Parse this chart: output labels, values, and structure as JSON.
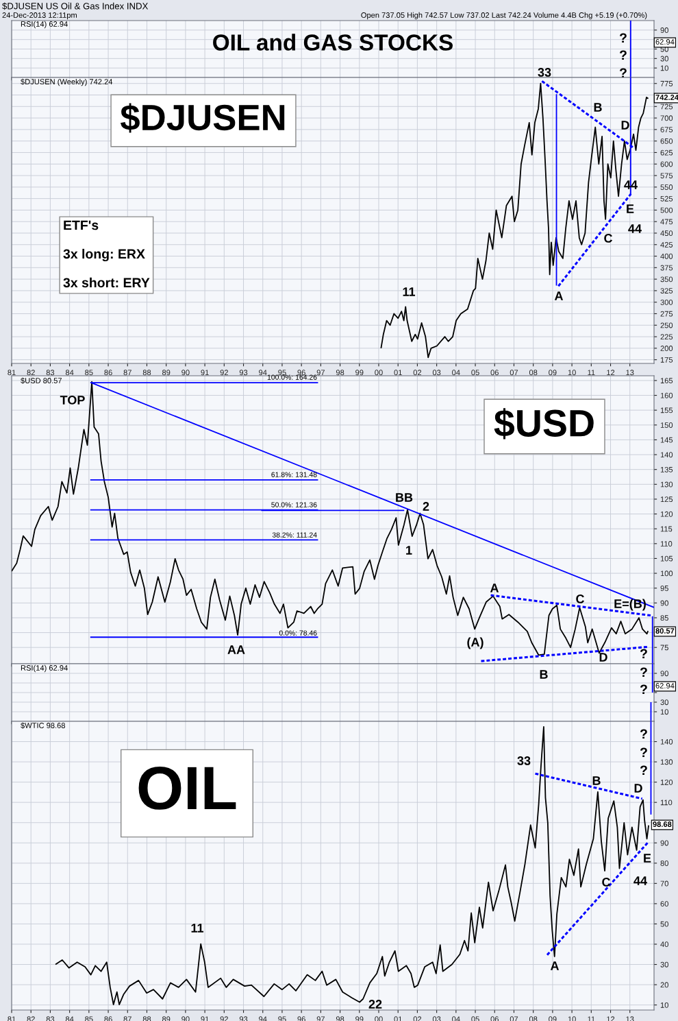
{
  "chart_data": [
    {
      "type": "line",
      "title": "OIL and GAS STOCKS",
      "xlim": [
        1981,
        2014.25
      ],
      "ylim": [
        -10,
        110
      ],
      "yticks": [
        10,
        30,
        50,
        {
          "value": 70,
          "label": null
        },
        90
      ],
      "grid": true,
      "tick_labels": "y",
      "xticks": [
        1981,
        1982,
        1983,
        1984,
        1985,
        1986,
        1987,
        1988,
        1989,
        1990,
        1991,
        1992,
        1993,
        1994,
        1995,
        1996,
        1997,
        1998,
        1999,
        2000,
        2001,
        2002,
        2003,
        2004,
        2005,
        2006,
        2007,
        2008,
        2009,
        2010,
        2011,
        2012,
        2013
      ],
      "series": [
        {
          "color": "#0000ff",
          "line_style": "solid",
          "x": [
            2013.04,
            2013.04
          ],
          "values": [
            -10,
            110
          ]
        }
      ],
      "annotations": [
        "$DJUSEN US Oil & Gas Index INDX",
        "24-Dec-2013 12:11pm",
        "Open 737.05 High 742.57 Low 737.02 Last 742.24 Volume 4.4B Chg +5.19 (+0.70%)",
        "RSI(14) 62.94",
        "62.94",
        "33",
        "?",
        "?",
        "?"
      ]
    },
    {
      "type": "line",
      "xlim": [
        1981,
        2014.25
      ],
      "ylim": [
        167,
        788
      ],
      "yticks": [
        175,
        200,
        225,
        250,
        275,
        300,
        325,
        350,
        375,
        400,
        425,
        450,
        475,
        500,
        525,
        550,
        575,
        600,
        625,
        650,
        675,
        700,
        725,
        {
          "value": 750,
          "label": null
        },
        775
      ],
      "grid": true,
      "xticks": [
        {
          "value": 1981,
          "label": "81"
        },
        {
          "value": 1982,
          "label": "82"
        },
        {
          "value": 1983,
          "label": "83"
        },
        {
          "value": 1984,
          "label": "84"
        },
        {
          "value": 1985,
          "label": "85"
        },
        {
          "value": 1986,
          "label": "86"
        },
        {
          "value": 1987,
          "label": "87"
        },
        {
          "value": 1988,
          "label": "88"
        },
        {
          "value": 1989,
          "label": "89"
        },
        {
          "value": 1990,
          "label": "90"
        },
        {
          "value": 1991,
          "label": "91"
        },
        {
          "value": 1992,
          "label": "92"
        },
        {
          "value": 1993,
          "label": "93"
        },
        {
          "value": 1994,
          "label": "94"
        },
        {
          "value": 1995,
          "label": "95"
        },
        {
          "value": 1996,
          "label": "96"
        },
        {
          "value": 1997,
          "label": "97"
        },
        {
          "value": 1998,
          "label": "98"
        },
        {
          "value": 1999,
          "label": "99"
        },
        {
          "value": 2000,
          "label": "00"
        },
        {
          "value": 2001,
          "label": "01"
        },
        {
          "value": 2002,
          "label": "02"
        },
        {
          "value": 2003,
          "label": "03"
        },
        {
          "value": 2004,
          "label": "04"
        },
        {
          "value": 2005,
          "label": "05"
        },
        {
          "value": 2006,
          "label": "06"
        },
        {
          "value": 2007,
          "label": "07"
        },
        {
          "value": 2008,
          "label": "08"
        },
        {
          "value": 2009,
          "label": "09"
        },
        {
          "value": 2010,
          "label": "10"
        },
        {
          "value": 2011,
          "label": "11"
        },
        {
          "value": 2012,
          "label": "12"
        },
        {
          "value": 2013,
          "label": "13"
        }
      ],
      "series": [
        {
          "color": "#000000",
          "line_style": "solid",
          "x": [
            2000.12,
            2000.24,
            2000.41,
            2000.59,
            2000.79,
            2001.0,
            2001.18,
            2001.3,
            2001.39,
            2001.47,
            2001.71,
            2001.89,
            2002.01,
            2002.22,
            2002.42,
            2002.56,
            2002.71,
            2003.01,
            2003.42,
            2003.6,
            2003.83,
            2004.01,
            2004.25,
            2004.6,
            2004.9,
            2005.01,
            2005.13,
            2005.37,
            2005.55,
            2005.72,
            2005.9,
            2006.08,
            2006.37,
            2006.61,
            2006.9,
            2007.02,
            2007.2,
            2007.37,
            2007.55,
            2007.79,
            2007.93,
            2008.08,
            2008.26,
            2008.38,
            2008.5,
            2008.61,
            2008.71,
            2008.79,
            2008.85,
            2008.93,
            2009.03,
            2009.18,
            2009.32,
            2009.53,
            2009.68,
            2009.85,
            2010.03,
            2010.21,
            2010.38,
            2010.5,
            2010.68,
            2010.86,
            2011.03,
            2011.21,
            2011.39,
            2011.56,
            2011.66,
            2011.74,
            2011.86,
            2012.01,
            2012.15,
            2012.27,
            2012.41,
            2012.57,
            2012.72,
            2012.86,
            2013.01,
            2013.19,
            2013.31,
            2013.45,
            2013.57,
            2013.69,
            2013.86,
            2013.95
          ],
          "values": [
            200,
            230,
            260,
            250,
            275,
            265,
            280,
            260,
            290,
            260,
            215,
            230,
            220,
            255,
            225,
            180,
            200,
            205,
            225,
            215,
            225,
            260,
            275,
            285,
            325,
            330,
            395,
            350,
            390,
            450,
            415,
            500,
            440,
            510,
            530,
            475,
            500,
            600,
            640,
            690,
            620,
            690,
            720,
            775,
            700,
            610,
            520,
            460,
            360,
            430,
            380,
            440,
            410,
            395,
            460,
            520,
            480,
            520,
            440,
            425,
            450,
            560,
            620,
            680,
            600,
            660,
            520,
            480,
            600,
            570,
            650,
            590,
            530,
            600,
            650,
            610,
            630,
            665,
            630,
            680,
            700,
            710,
            745,
            742.24
          ]
        },
        {
          "color": "#0000ff",
          "line_style": "dashed",
          "x": [
            2008.45,
            2013.2
          ],
          "values": [
            780,
            635
          ]
        },
        {
          "color": "#0000ff",
          "line_style": "dashed",
          "x": [
            2009.3,
            2013.05
          ],
          "values": [
            335,
            535
          ]
        },
        {
          "color": "#0000ff",
          "line_style": "solid",
          "x": [
            2009.2,
            2009.2
          ],
          "values": [
            336,
            752
          ]
        },
        {
          "color": "#0000ff",
          "line_style": "solid",
          "x": [
            2013.04,
            2013.04
          ],
          "values": [
            532,
            788
          ]
        }
      ],
      "annotations": [
        "$DJUSEN (Weekly) 742.24",
        "$DJUSEN",
        "ETF's\n\n3x long: ERX\n\n3x short: ERY",
        "742.24",
        "11",
        "A",
        "B",
        "C",
        "D",
        "E",
        "44",
        "44"
      ]
    },
    {
      "type": "line",
      "xlim": [
        1981,
        2014.25
      ],
      "ylim": [
        69.5,
        166.6
      ],
      "yticks": [
        75,
        {
          "value": 80,
          "label": null
        },
        85,
        90,
        95,
        100,
        105,
        110,
        115,
        120,
        125,
        130,
        135,
        140,
        145,
        150,
        155,
        160,
        165
      ],
      "grid": true,
      "tick_labels": "y",
      "xticks": [
        1981,
        1982,
        1983,
        1984,
        1985,
        1986,
        1987,
        1988,
        1989,
        1990,
        1991,
        1992,
        1993,
        1994,
        1995,
        1996,
        1997,
        1998,
        1999,
        2000,
        2001,
        2002,
        2003,
        2004,
        2005,
        2006,
        2007,
        2008,
        2009,
        2010,
        2011,
        2012,
        2013
      ],
      "series": [
        {
          "color": "#000000",
          "line_style": "solid",
          "x": [
            1981.0,
            1981.26,
            1981.44,
            1981.6,
            1982.03,
            1982.2,
            1982.5,
            1982.9,
            1983.1,
            1983.4,
            1983.6,
            1983.86,
            1984.03,
            1984.2,
            1984.45,
            1984.74,
            1984.92,
            1985.15,
            1985.27,
            1985.5,
            1985.63,
            1985.8,
            1986.0,
            1986.2,
            1986.33,
            1986.5,
            1986.8,
            1986.98,
            1987.16,
            1987.4,
            1987.63,
            1987.87,
            1988.04,
            1988.28,
            1988.58,
            1988.93,
            1989.22,
            1989.46,
            1989.64,
            1989.87,
            1990.05,
            1990.29,
            1990.58,
            1990.82,
            1991.1,
            1991.29,
            1991.52,
            1991.76,
            1992.06,
            1992.29,
            1992.53,
            1992.7,
            1992.88,
            1993.12,
            1993.35,
            1993.6,
            1993.83,
            1994.07,
            1994.36,
            1994.6,
            1994.89,
            1995.07,
            1995.3,
            1995.6,
            1995.77,
            1996.13,
            1996.48,
            1996.66,
            1996.83,
            1997.07,
            1997.25,
            1997.6,
            1997.9,
            1998.13,
            1998.66,
            1998.78,
            1999.01,
            1999.25,
            1999.54,
            1999.78,
            1999.96,
            2000.19,
            2000.43,
            2000.66,
            2000.9,
            2001.02,
            2001.31,
            2001.49,
            2001.73,
            2001.96,
            2002.14,
            2002.32,
            2002.55,
            2002.79,
            2003.02,
            2003.26,
            2003.5,
            2003.67,
            2003.85,
            2004.09,
            2004.38,
            2004.68,
            2004.97,
            2005.21,
            2005.56,
            2005.92,
            2006.27,
            2006.39,
            2006.74,
            2007.21,
            2007.69,
            2007.92,
            2008.28,
            2008.57,
            2008.81,
            2008.99,
            2009.22,
            2009.4,
            2009.69,
            2009.93,
            2010.17,
            2010.4,
            2010.7,
            2010.82,
            2011.05,
            2011.41,
            2011.7,
            2012.05,
            2012.29,
            2012.53,
            2012.76,
            2013.11,
            2013.47,
            2013.65,
            2013.88,
            2013.94
          ],
          "values": [
            100.7,
            103.4,
            108,
            112.6,
            109.1,
            114.8,
            119.4,
            122.5,
            117.9,
            122.5,
            130.9,
            127.1,
            135.5,
            126.7,
            135.5,
            148.5,
            143.2,
            164.6,
            149.3,
            147,
            137.8,
            130.9,
            125.6,
            115.6,
            120.2,
            111.8,
            106.4,
            107.2,
            100.3,
            95.7,
            101.1,
            95,
            86.1,
            90.3,
            98.8,
            90.3,
            97.2,
            104.9,
            101.1,
            98,
            92.6,
            94.6,
            88,
            83.5,
            81.2,
            91.9,
            98,
            91.1,
            84.2,
            92.3,
            85.8,
            79.2,
            89.6,
            95,
            89.6,
            96.1,
            91.9,
            97.2,
            93.4,
            89.6,
            86.5,
            89.6,
            81.6,
            83.5,
            87.3,
            86.5,
            88.8,
            86.5,
            88,
            89.6,
            96.5,
            101.1,
            95.7,
            101.8,
            102.2,
            93,
            94.9,
            100.7,
            104.5,
            98,
            102.6,
            107.2,
            111.8,
            114.8,
            118.7,
            109.5,
            116.4,
            121.4,
            112.5,
            116.4,
            120.2,
            116.4,
            104.9,
            108,
            102.6,
            98.8,
            93,
            99.1,
            91.9,
            85.8,
            91.9,
            88,
            81.2,
            85,
            90.3,
            92.3,
            88.8,
            84.6,
            86.1,
            83.5,
            80.4,
            76.6,
            72.4,
            72.7,
            85.8,
            88,
            89.2,
            81.2,
            78.1,
            75,
            81.2,
            88.4,
            81.9,
            76.6,
            81.2,
            73.1,
            76.6,
            81.6,
            79.6,
            83.8,
            79.6,
            81.2,
            85,
            81.2,
            79.6,
            80.57
          ]
        },
        {
          "color": "#0000ff",
          "line_style": "solid",
          "x": [
            1985.07,
            1996.86
          ],
          "values": [
            164.26,
            164.26
          ]
        },
        {
          "color": "#0000ff",
          "line_style": "solid",
          "x": [
            1985.07,
            1996.86
          ],
          "values": [
            131.48,
            131.48
          ]
        },
        {
          "color": "#0000ff",
          "line_style": "solid",
          "x": [
            1985.07,
            1996.86
          ],
          "values": [
            121.36,
            121.36
          ]
        },
        {
          "color": "#0000ff",
          "line_style": "solid",
          "x": [
            1985.07,
            1996.86
          ],
          "values": [
            111.24,
            111.24
          ]
        },
        {
          "color": "#0000ff",
          "line_style": "solid",
          "x": [
            1985.07,
            1996.86
          ],
          "values": [
            78.46,
            78.46
          ]
        },
        {
          "color": "#0000ff",
          "line_style": "solid",
          "x": [
            1993.92,
            2001.32
          ],
          "values": [
            121.2,
            121.2
          ]
        },
        {
          "color": "#0000ff",
          "line_style": "solid",
          "x": [
            1985.1,
            2014.25
          ],
          "values": [
            164.3,
            88.5
          ]
        },
        {
          "color": "#0000ff",
          "line_style": "dashed",
          "x": [
            2005.8,
            2014.18
          ],
          "values": [
            92.6,
            85.7
          ]
        },
        {
          "color": "#0000ff",
          "line_style": "dashed",
          "x": [
            2005.3,
            2013.94
          ],
          "values": [
            70.4,
            75.2
          ]
        },
        {
          "color": "#0000ff",
          "line_style": "solid",
          "x": [
            2014.17,
            2014.17
          ],
          "values": [
            85.5,
            69.5
          ]
        }
      ],
      "annotations": [
        "$USD 80.57",
        "$USD",
        "100.0%: 164.26",
        "61.8%: 131.48",
        "50.0%: 121.36",
        "38.2%: 111.24",
        "0.0%: 78.46",
        "80.57",
        "TOP",
        "AA",
        "BB",
        "2",
        "1",
        "A",
        "(A)",
        "C",
        "E=(B)",
        "D",
        "?"
      ]
    },
    {
      "type": "line",
      "xlim": [
        1981,
        2014.25
      ],
      "ylim": [
        -10,
        110
      ],
      "yticks": [
        10,
        30,
        {
          "value": 50,
          "label": null
        },
        {
          "value": 70,
          "label": null
        },
        90
      ],
      "grid": true,
      "tick_labels": "y",
      "xticks": [
        1981,
        1982,
        1983,
        1984,
        1985,
        1986,
        1987,
        1988,
        1989,
        1990,
        1991,
        1992,
        1993,
        1994,
        1995,
        1996,
        1997,
        1998,
        1999,
        2000,
        2001,
        2002,
        2003,
        2004,
        2005,
        2006,
        2007,
        2008,
        2009,
        2010,
        2011,
        2012,
        2013
      ],
      "series": [
        {
          "color": "#0000ff",
          "line_style": "solid",
          "x": [
            2014.17,
            2014.17
          ],
          "values": [
            110,
            50
          ]
        },
        {
          "color": "#0000ff",
          "line_style": "solid",
          "x": [
            2014.09,
            2014.09
          ],
          "values": [
            -10,
            30
          ]
        }
      ],
      "annotations": [
        "RSI(14) 62.94",
        "62.94",
        "B",
        "?",
        "?"
      ]
    },
    {
      "type": "line",
      "xlim": [
        1981,
        2014.25
      ],
      "ylim": [
        7.5,
        150
      ],
      "yticks": [
        10,
        20,
        30,
        40,
        50,
        60,
        70,
        80,
        90,
        {
          "value": 100,
          "label": null
        },
        110,
        120,
        130,
        140
      ],
      "grid": true,
      "xticks": [
        {
          "value": 1981,
          "label": "81"
        },
        {
          "value": 1982,
          "label": "82"
        },
        {
          "value": 1983,
          "label": "83"
        },
        {
          "value": 1984,
          "label": "84"
        },
        {
          "value": 1985,
          "label": "85"
        },
        {
          "value": 1986,
          "label": "86"
        },
        {
          "value": 1987,
          "label": "87"
        },
        {
          "value": 1988,
          "label": "88"
        },
        {
          "value": 1989,
          "label": "89"
        },
        {
          "value": 1990,
          "label": "90"
        },
        {
          "value": 1991,
          "label": "91"
        },
        {
          "value": 1992,
          "label": "92"
        },
        {
          "value": 1993,
          "label": "93"
        },
        {
          "value": 1994,
          "label": "94"
        },
        {
          "value": 1995,
          "label": "95"
        },
        {
          "value": 1996,
          "label": "96"
        },
        {
          "value": 1997,
          "label": "97"
        },
        {
          "value": 1998,
          "label": "98"
        },
        {
          "value": 1999,
          "label": "99"
        },
        {
          "value": 2000,
          "label": "00"
        },
        {
          "value": 2001,
          "label": "01"
        },
        {
          "value": 2002,
          "label": "02"
        },
        {
          "value": 2003,
          "label": "03"
        },
        {
          "value": 2004,
          "label": "04"
        },
        {
          "value": 2005,
          "label": "05"
        },
        {
          "value": 2006,
          "label": "06"
        },
        {
          "value": 2007,
          "label": "07"
        },
        {
          "value": 2008,
          "label": "08"
        },
        {
          "value": 2009,
          "label": "09"
        },
        {
          "value": 2010,
          "label": "10"
        },
        {
          "value": 2011,
          "label": "11"
        },
        {
          "value": 2012,
          "label": "12"
        },
        {
          "value": 2013,
          "label": "13"
        }
      ],
      "series": [
        {
          "color": "#000000",
          "line_style": "solid",
          "x": [
            1983.27,
            1983.62,
            1983.97,
            1984.39,
            1984.8,
            1985.1,
            1985.33,
            1985.63,
            1985.92,
            1986.1,
            1986.27,
            1986.45,
            1986.57,
            1986.8,
            1987.1,
            1987.57,
            1987.99,
            1988.34,
            1988.81,
            1989.22,
            1989.64,
            1990.05,
            1990.52,
            1990.79,
            1990.99,
            1991.17,
            1991.82,
            1992.11,
            1992.47,
            1993.06,
            1993.41,
            1994.06,
            1994.59,
            1995.0,
            1995.36,
            1995.71,
            1996.3,
            1996.72,
            1997.07,
            1997.31,
            1997.78,
            1998.13,
            1998.6,
            1999.01,
            1999.19,
            1999.54,
            1999.9,
            2000.19,
            2000.31,
            2000.55,
            2000.84,
            2001.02,
            2001.43,
            2001.67,
            2001.84,
            2002.02,
            2002.38,
            2002.79,
            2002.97,
            2003.18,
            2003.32,
            2003.79,
            2004.2,
            2004.44,
            2004.62,
            2004.79,
            2004.97,
            2005.21,
            2005.38,
            2005.68,
            2005.92,
            2006.21,
            2006.56,
            2006.68,
            2006.86,
            2007.04,
            2007.33,
            2007.57,
            2007.86,
            2008.1,
            2008.28,
            2008.4,
            2008.54,
            2008.63,
            2008.75,
            2008.87,
            2008.98,
            2009.1,
            2009.22,
            2009.45,
            2009.69,
            2009.87,
            2010.1,
            2010.34,
            2010.46,
            2010.75,
            2011.11,
            2011.34,
            2011.52,
            2011.7,
            2011.88,
            2012.17,
            2012.35,
            2012.46,
            2012.7,
            2012.88,
            2013.11,
            2013.35,
            2013.53,
            2013.68,
            2013.76,
            2013.88,
            2013.97
          ],
          "values": [
            30,
            32.2,
            28.3,
            31.1,
            28.8,
            24.9,
            29.4,
            26.6,
            31.1,
            18.7,
            10.2,
            16.4,
            10.2,
            15.3,
            19.3,
            22.1,
            15.9,
            17.6,
            13,
            20.9,
            18.7,
            22.6,
            16.4,
            40.1,
            31.1,
            18.7,
            23.2,
            18.7,
            22.6,
            19.3,
            19.8,
            14.2,
            20.4,
            17.6,
            20.4,
            17,
            24.9,
            22.1,
            26.6,
            19.8,
            22.6,
            16.4,
            13.6,
            11.4,
            13,
            20.9,
            25.5,
            33.9,
            24.3,
            31.1,
            36.7,
            26.6,
            29.4,
            25.5,
            18.7,
            19.8,
            28.8,
            31.1,
            25.5,
            39.6,
            26.6,
            30,
            35,
            41.8,
            36.7,
            55.4,
            40.7,
            58.2,
            48,
            70.6,
            56.5,
            66.1,
            79.1,
            68.3,
            60.4,
            51.4,
            66.6,
            79.6,
            98.8,
            87.5,
            109,
            128.1,
            147.3,
            112.3,
            99.9,
            63.8,
            46.9,
            33.9,
            54.8,
            72.9,
            68.3,
            81.9,
            74,
            87,
            68.3,
            79.6,
            92,
            115.2,
            90.9,
            76.2,
            102.2,
            110.7,
            97.7,
            77.4,
            99.9,
            84.1,
            97.7,
            86.4,
            107.8,
            111.2,
            101.1,
            92,
            98.68
          ]
        },
        {
          "color": "#0000ff",
          "line_style": "dashed",
          "x": [
            2008.1,
            2013.64
          ],
          "values": [
            124.2,
            111.8
          ]
        },
        {
          "color": "#0000ff",
          "line_style": "dashed",
          "x": [
            2008.72,
            2013.94
          ],
          "values": [
            34.7,
            90.3
          ]
        },
        {
          "color": "#0000ff",
          "line_style": "solid",
          "x": [
            2014.09,
            2014.09
          ],
          "values": [
            104,
            150
          ]
        }
      ],
      "annotations": [
        "$WTIC 98.68",
        "OIL",
        "98.68",
        "11",
        "22",
        "33",
        "A",
        "B",
        "C",
        "D",
        "E",
        "44",
        "?",
        "?",
        "?"
      ]
    }
  ]
}
